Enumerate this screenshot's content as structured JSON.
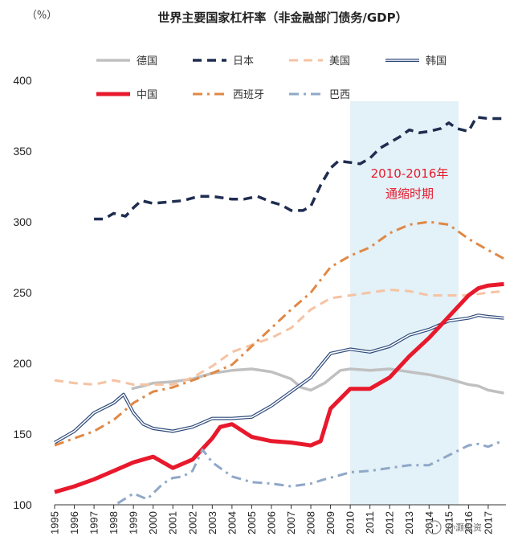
{
  "chart_data": {
    "type": "line",
    "title": "世界主要国家杠杆率（非金融部门债务/GDP）",
    "unit_label": "（%）",
    "ylim": [
      100,
      400
    ],
    "yticks": [
      100,
      150,
      200,
      250,
      300,
      350,
      400
    ],
    "xlim": [
      1995,
      2017.9
    ],
    "xticks": [
      "1995",
      "1996",
      "1997",
      "1998",
      "1999",
      "2000",
      "2001",
      "2002",
      "2003",
      "2004",
      "2005",
      "2006",
      "2007",
      "2008",
      "2009",
      "2010",
      "2011",
      "2012",
      "2013",
      "2014",
      "2015",
      "2016",
      "2017"
    ],
    "legend_position": "top",
    "shaded_region": {
      "from": 2010.0,
      "to": 2015.5,
      "color": "#e3f1f8"
    },
    "annotation": {
      "lines": [
        "2010-2016年",
        "通缩时期"
      ],
      "color": "#e8192c"
    },
    "series": [
      {
        "name": "德国",
        "color": "#c0c0c0",
        "style": "solid",
        "width": 3.5,
        "points": [
          [
            1998.9,
            182
          ],
          [
            1999.5,
            184
          ],
          [
            2000,
            186
          ],
          [
            2001,
            187
          ],
          [
            2002,
            189
          ],
          [
            2003,
            193
          ],
          [
            2004,
            195
          ],
          [
            2005,
            196
          ],
          [
            2006,
            194
          ],
          [
            2007,
            189
          ],
          [
            2007.5,
            183
          ],
          [
            2008,
            181
          ],
          [
            2008.7,
            186
          ],
          [
            2009.5,
            195
          ],
          [
            2010,
            196
          ],
          [
            2011,
            195
          ],
          [
            2012,
            196
          ],
          [
            2013,
            194
          ],
          [
            2014,
            192
          ],
          [
            2015,
            189
          ],
          [
            2016,
            185
          ],
          [
            2016.5,
            184
          ],
          [
            2017,
            181
          ],
          [
            2017.8,
            179
          ]
        ]
      },
      {
        "name": "日本",
        "color": "#1f2d50",
        "style": "dash",
        "width": 3.5,
        "points": [
          [
            1997,
            302
          ],
          [
            1997.5,
            302
          ],
          [
            1998,
            306
          ],
          [
            1998.6,
            304
          ],
          [
            1999,
            310
          ],
          [
            1999.4,
            315
          ],
          [
            2000,
            313
          ],
          [
            2000.7,
            314
          ],
          [
            2001.5,
            315
          ],
          [
            2002.3,
            318
          ],
          [
            2003,
            318
          ],
          [
            2004,
            316
          ],
          [
            2004.6,
            316
          ],
          [
            2005.3,
            318
          ],
          [
            2006,
            314
          ],
          [
            2006.5,
            312
          ],
          [
            2007,
            308
          ],
          [
            2007.6,
            308
          ],
          [
            2008,
            311
          ],
          [
            2008.5,
            326
          ],
          [
            2009,
            338
          ],
          [
            2009.4,
            343
          ],
          [
            2010,
            342
          ],
          [
            2010.5,
            341
          ],
          [
            2011,
            345
          ],
          [
            2011.5,
            352
          ],
          [
            2012,
            356
          ],
          [
            2012.5,
            360
          ],
          [
            2013,
            365
          ],
          [
            2013.5,
            363
          ],
          [
            2014,
            364
          ],
          [
            2014.6,
            366
          ],
          [
            2015,
            370
          ],
          [
            2015.4,
            366
          ],
          [
            2016,
            364
          ],
          [
            2016.4,
            374
          ],
          [
            2017,
            373
          ],
          [
            2017.8,
            373
          ]
        ]
      },
      {
        "name": "美国",
        "color": "#f5c3a3",
        "style": "dash",
        "width": 3,
        "points": [
          [
            1995,
            188
          ],
          [
            1996,
            186
          ],
          [
            1997,
            185
          ],
          [
            1998,
            188
          ],
          [
            1999,
            185
          ],
          [
            2000,
            185
          ],
          [
            2001,
            185
          ],
          [
            2002,
            190
          ],
          [
            2003,
            198
          ],
          [
            2004,
            208
          ],
          [
            2005,
            213
          ],
          [
            2006,
            218
          ],
          [
            2007,
            225
          ],
          [
            2008,
            238
          ],
          [
            2009,
            246
          ],
          [
            2010,
            248
          ],
          [
            2011,
            250
          ],
          [
            2012,
            252
          ],
          [
            2013,
            251
          ],
          [
            2014,
            248
          ],
          [
            2015,
            248
          ],
          [
            2016,
            248
          ],
          [
            2017,
            250
          ],
          [
            2017.8,
            251
          ]
        ]
      },
      {
        "name": "韩国",
        "color": "#2e4a7a",
        "style": "double",
        "width": 1.8,
        "points": [
          [
            1995,
            144
          ],
          [
            1996,
            152
          ],
          [
            1997,
            165
          ],
          [
            1998,
            172
          ],
          [
            1998.5,
            178
          ],
          [
            1999,
            165
          ],
          [
            1999.5,
            157
          ],
          [
            2000,
            154
          ],
          [
            2001,
            152
          ],
          [
            2002,
            155
          ],
          [
            2003,
            161
          ],
          [
            2004,
            161
          ],
          [
            2005,
            162
          ],
          [
            2006,
            170
          ],
          [
            2007,
            180
          ],
          [
            2008,
            190
          ],
          [
            2009,
            207
          ],
          [
            2010,
            210
          ],
          [
            2011,
            208
          ],
          [
            2012,
            212
          ],
          [
            2013,
            220
          ],
          [
            2014,
            224
          ],
          [
            2015,
            230
          ],
          [
            2016,
            232
          ],
          [
            2016.5,
            234
          ],
          [
            2017,
            233
          ],
          [
            2017.8,
            232
          ]
        ]
      },
      {
        "name": "中国",
        "color": "#e8192c",
        "style": "solid",
        "width": 5,
        "points": [
          [
            1995,
            109
          ],
          [
            1996,
            113
          ],
          [
            1997,
            118
          ],
          [
            1998,
            124
          ],
          [
            1999,
            130
          ],
          [
            2000,
            134
          ],
          [
            2001,
            126
          ],
          [
            2002,
            132
          ],
          [
            2003,
            147
          ],
          [
            2003.4,
            155
          ],
          [
            2004,
            157
          ],
          [
            2005,
            148
          ],
          [
            2006,
            145
          ],
          [
            2007,
            144
          ],
          [
            2008,
            142
          ],
          [
            2008.5,
            145
          ],
          [
            2009,
            168
          ],
          [
            2010,
            182
          ],
          [
            2011,
            182
          ],
          [
            2012,
            190
          ],
          [
            2013,
            205
          ],
          [
            2014,
            218
          ],
          [
            2015,
            233
          ],
          [
            2016,
            248
          ],
          [
            2016.5,
            253
          ],
          [
            2017,
            255
          ],
          [
            2017.8,
            256
          ]
        ]
      },
      {
        "name": "西班牙",
        "color": "#e08845",
        "style": "dashdot",
        "width": 3,
        "points": [
          [
            1995,
            142
          ],
          [
            1996,
            147
          ],
          [
            1997,
            152
          ],
          [
            1998,
            160
          ],
          [
            1999,
            172
          ],
          [
            2000,
            180
          ],
          [
            2001,
            183
          ],
          [
            2002,
            188
          ],
          [
            2003,
            193
          ],
          [
            2004,
            199
          ],
          [
            2005,
            212
          ],
          [
            2006,
            225
          ],
          [
            2007,
            238
          ],
          [
            2008,
            250
          ],
          [
            2009,
            268
          ],
          [
            2010,
            276
          ],
          [
            2011,
            282
          ],
          [
            2012,
            292
          ],
          [
            2013,
            298
          ],
          [
            2014,
            300
          ],
          [
            2015,
            298
          ],
          [
            2016,
            288
          ],
          [
            2016.5,
            284
          ],
          [
            2017,
            280
          ],
          [
            2017.8,
            274
          ]
        ]
      },
      {
        "name": "巴西",
        "color": "#90a8c8",
        "style": "dashdot",
        "width": 3,
        "points": [
          [
            1998.2,
            101
          ],
          [
            1999,
            108
          ],
          [
            1999.7,
            104
          ],
          [
            2000.5,
            115
          ],
          [
            2001,
            119
          ],
          [
            2001.5,
            120
          ],
          [
            2002,
            124
          ],
          [
            2002.5,
            139
          ],
          [
            2003,
            130
          ],
          [
            2004,
            120
          ],
          [
            2005,
            116
          ],
          [
            2006,
            115
          ],
          [
            2007,
            113
          ],
          [
            2008,
            115
          ],
          [
            2008.7,
            118
          ],
          [
            2009.5,
            121
          ],
          [
            2010,
            123
          ],
          [
            2011,
            124
          ],
          [
            2012,
            126
          ],
          [
            2013,
            128
          ],
          [
            2014,
            128
          ],
          [
            2015,
            135
          ],
          [
            2016,
            142
          ],
          [
            2016.5,
            143
          ],
          [
            2017,
            141
          ],
          [
            2017.5,
            144
          ],
          [
            2017.8,
            144
          ]
        ]
      }
    ]
  },
  "watermark": "孙灏投资"
}
